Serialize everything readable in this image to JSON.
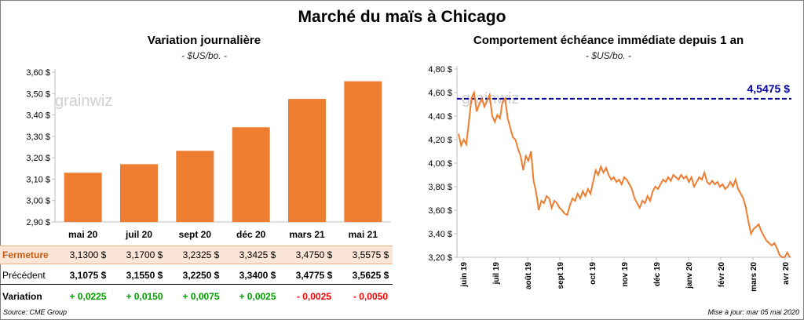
{
  "title": "Marché du maïs à Chicago",
  "left_panel": {
    "title": "Variation  journalière",
    "subtitle": "- $US/bo. -"
  },
  "right_panel": {
    "title": "Comportement  échéance immédiate  depuis 1 an",
    "subtitle": "- $US/bo. -"
  },
  "watermark": "grainwiz",
  "table": {
    "rows": [
      {
        "label": "Fermeture",
        "values": [
          "3,1300  $",
          "3,1700  $",
          "3,2325  $",
          "3,3425  $",
          "3,4750  $",
          "3,5575  $"
        ]
      },
      {
        "label": "Précédent",
        "values": [
          "3,1075  $",
          "3,1550  $",
          "3,2250  $",
          "3,3400  $",
          "3,4775  $",
          "3,5625  $"
        ]
      },
      {
        "label": "Variation",
        "values": [
          "+ 0,0225",
          "+ 0,0150",
          "+ 0,0075",
          "+ 0,0025",
          "- 0,0025",
          "- 0,0050"
        ]
      }
    ]
  },
  "footer": {
    "source": "Source: CME Group",
    "updated": "Mise à jour: mar 05 mai 2020"
  },
  "colors": {
    "bar": "#ed7d31",
    "line": "#ed7d31",
    "ref_line": "#0000a0",
    "positive": "#00a000",
    "negative": "#ff0000"
  },
  "chart_data": [
    {
      "type": "bar",
      "title": "Variation  journalière",
      "categories": [
        "mai 20",
        "juil 20",
        "sept 20",
        "déc 20",
        "mars 21",
        "mai 21"
      ],
      "values": [
        3.13,
        3.17,
        3.2325,
        3.3425,
        3.475,
        3.5575
      ],
      "ylim": [
        2.9,
        3.6
      ],
      "yticks": [
        "2,90 $",
        "3,00 $",
        "3,10 $",
        "3,20 $",
        "3,30 $",
        "3,40 $",
        "3,50 $",
        "3,60 $"
      ],
      "ylabel": "$US/bo."
    },
    {
      "type": "line",
      "title": "Comportement  échéance immédiate  depuis 1 an",
      "x_labels": [
        "juin 19",
        "juil 19",
        "août 19",
        "sept 19",
        "oct 19",
        "nov 19",
        "déc 19",
        "janv 20",
        "févr 20",
        "mars 20",
        "avr 20"
      ],
      "ylim": [
        3.2,
        4.8
      ],
      "yticks": [
        "3,20 $",
        "3,40 $",
        "3,60 $",
        "3,80 $",
        "4,00 $",
        "4,20 $",
        "4,40 $",
        "4,60 $",
        "4,80 $"
      ],
      "reference_value": 4.5475,
      "reference_label": "4,5475 $",
      "series_values": [
        4.25,
        4.15,
        4.2,
        4.16,
        4.35,
        4.55,
        4.6,
        4.44,
        4.5,
        4.55,
        4.48,
        4.53,
        4.58,
        4.4,
        4.35,
        4.41,
        4.38,
        4.52,
        4.55,
        4.38,
        4.3,
        4.22,
        4.2,
        4.12,
        4.06,
        3.94,
        4.06,
        4.02,
        4.1,
        3.85,
        3.75,
        3.6,
        3.68,
        3.66,
        3.72,
        3.7,
        3.62,
        3.68,
        3.66,
        3.62,
        3.6,
        3.57,
        3.56,
        3.64,
        3.7,
        3.68,
        3.74,
        3.7,
        3.76,
        3.72,
        3.78,
        3.74,
        3.84,
        3.94,
        3.9,
        3.97,
        3.92,
        3.96,
        3.9,
        3.86,
        3.88,
        3.84,
        3.86,
        3.82,
        3.88,
        3.86,
        3.82,
        3.78,
        3.7,
        3.66,
        3.62,
        3.68,
        3.66,
        3.72,
        3.68,
        3.76,
        3.8,
        3.78,
        3.82,
        3.86,
        3.84,
        3.88,
        3.85,
        3.9,
        3.88,
        3.86,
        3.9,
        3.87,
        3.89,
        3.84,
        3.88,
        3.8,
        3.84,
        3.88,
        3.86,
        3.92,
        3.84,
        3.82,
        3.85,
        3.82,
        3.84,
        3.8,
        3.82,
        3.78,
        3.8,
        3.84,
        3.8,
        3.86,
        3.78,
        3.74,
        3.7,
        3.62,
        3.5,
        3.4,
        3.44,
        3.46,
        3.48,
        3.42,
        3.38,
        3.34,
        3.32,
        3.3,
        3.32,
        3.28,
        3.22,
        3.18,
        3.2,
        3.24,
        3.2
      ]
    }
  ]
}
